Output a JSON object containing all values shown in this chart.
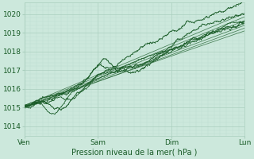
{
  "bg_color": "#cce8dc",
  "grid_major_color": "#aacfbe",
  "grid_minor_color": "#bcddd0",
  "line_color": "#1a5c28",
  "xlabel": "Pression niveau de la mer( hPa )",
  "xlabel_fontsize": 7,
  "yticks": [
    1014,
    1015,
    1016,
    1017,
    1018,
    1019,
    1020
  ],
  "ytick_fontsize": 6.5,
  "xtick_labels": [
    "Ven",
    "Sam",
    "Dim",
    "Lun"
  ],
  "xtick_positions": [
    0,
    24,
    48,
    72
  ],
  "xtick_fontsize": 6.5,
  "xlim": [
    0,
    72
  ],
  "ylim": [
    1013.5,
    1020.6
  ],
  "smooth_lines": [
    [
      1015.05,
      1019.1
    ],
    [
      1015.0,
      1019.4
    ],
    [
      1015.0,
      1019.65
    ],
    [
      1015.05,
      1019.85
    ],
    [
      1015.1,
      1020.05
    ],
    [
      1014.95,
      1019.25
    ]
  ]
}
